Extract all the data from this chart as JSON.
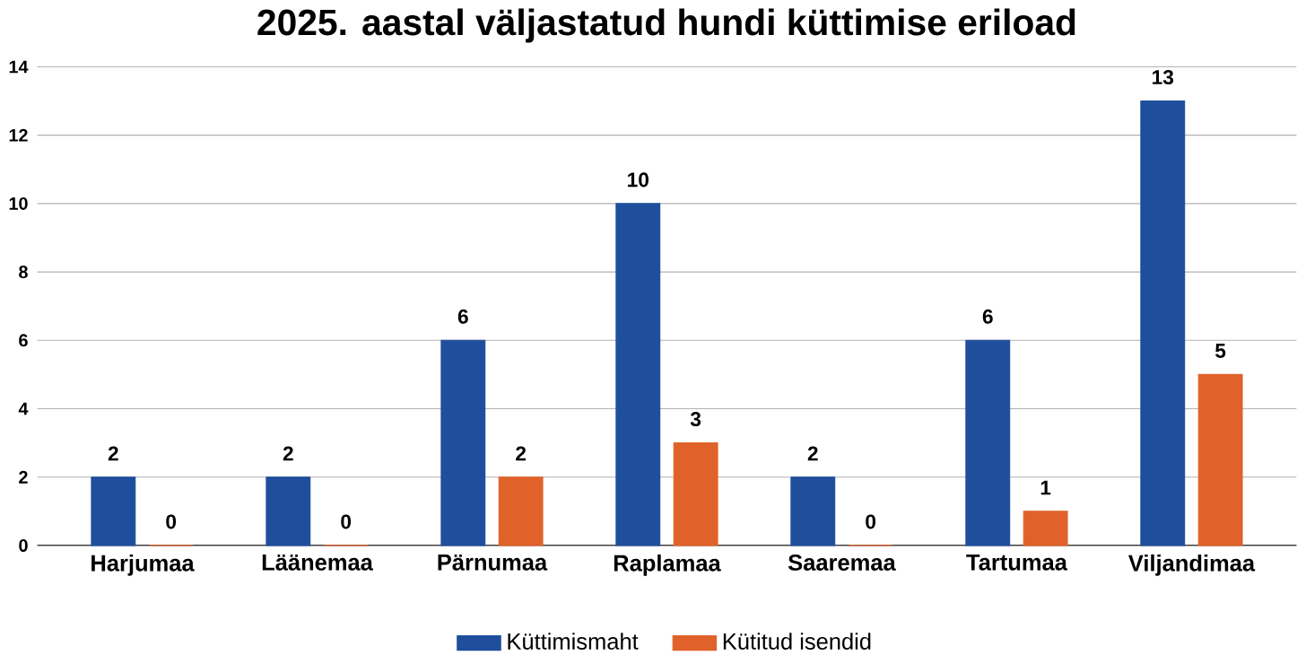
{
  "chart_data": {
    "type": "bar",
    "title": "2025. aastal väljastatud hundi küttimise eriload",
    "categories": [
      "Harjumaa",
      "Läänemaa",
      "Pärnumaa",
      "Raplamaa",
      "Saaremaa",
      "Tartumaa",
      "Viljandimaa"
    ],
    "series": [
      {
        "name": "Küttimismaht",
        "color": "#1f4e9c",
        "values": [
          2,
          2,
          6,
          10,
          2,
          6,
          13
        ]
      },
      {
        "name": "Kütitud isendid",
        "color": "#e0622a",
        "values": [
          0,
          0,
          2,
          3,
          0,
          1,
          5
        ]
      }
    ],
    "ylim": [
      0,
      14
    ],
    "yticks": [
      0,
      2,
      4,
      6,
      8,
      10,
      12,
      14
    ],
    "grid": "y",
    "legend": "bottom",
    "data_labels": true
  }
}
